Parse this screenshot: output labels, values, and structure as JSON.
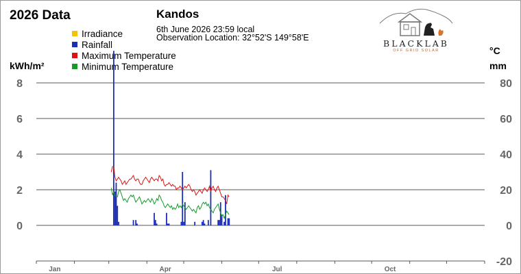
{
  "header": {
    "title": "2026 Data",
    "station": "Kandos",
    "observation_time": "6th June 2026  23:59 local",
    "observation_location": "Observation Location: 32°52'S 149°58'E"
  },
  "logo": {
    "name": "BLACKLAB",
    "tagline": "OFF GRID SOLAR"
  },
  "units": {
    "left": "kWh/m²",
    "right_top": "°C",
    "right_bottom": "mm"
  },
  "colors": {
    "irradiance": "#f2c300",
    "rainfall": "#1c2db5",
    "max_temp": "#e01010",
    "min_temp": "#129a2a",
    "grid": "#555555",
    "axis_text": "#666666"
  },
  "chart_data": {
    "type": "line",
    "title": "2026 Data",
    "left_axis": {
      "label": "kWh/m²",
      "ylim": [
        -2,
        8
      ],
      "ticks": [
        0,
        2,
        4,
        6,
        8
      ]
    },
    "right_axis": {
      "label": "°C / mm",
      "ylim": [
        -20,
        80
      ],
      "ticks": [
        -20,
        0,
        20,
        40,
        60,
        80
      ]
    },
    "x_axis": {
      "range_days": [
        0,
        365
      ],
      "tick_labels": [
        {
          "label": "Jan",
          "day": 15
        },
        {
          "label": "Apr",
          "day": 105
        },
        {
          "label": "Jul",
          "day": 196
        },
        {
          "label": "Oct",
          "day": 288
        }
      ]
    },
    "grid": true,
    "legend": [
      "Irradiance",
      "Rainfall",
      "Maximum Temperature",
      "Minimum Temperature"
    ],
    "series": [
      {
        "name": "Irradiance",
        "axis": "left",
        "values": []
      },
      {
        "name": "Rainfall",
        "axis": "right",
        "style": "bar",
        "x": [
          63,
          64,
          65,
          66,
          67,
          79,
          81,
          82,
          96,
          97,
          98,
          106,
          107,
          108,
          118,
          119,
          120,
          121,
          129,
          135,
          136,
          137,
          140,
          142,
          148,
          149,
          150,
          151,
          153,
          154,
          156,
          157
        ],
        "values": [
          98,
          19,
          24,
          11,
          2,
          3,
          3,
          1,
          7,
          3,
          1,
          7,
          1,
          1,
          2,
          30,
          2,
          13,
          2,
          2,
          3,
          1,
          3,
          31,
          3,
          3,
          13,
          6,
          2,
          17,
          4,
          4
        ]
      },
      {
        "name": "Maximum Temperature",
        "axis": "right",
        "x": [
          61,
          62,
          63,
          64,
          65,
          66,
          67,
          68,
          69,
          70,
          71,
          72,
          73,
          74,
          75,
          76,
          77,
          78,
          79,
          80,
          81,
          82,
          83,
          84,
          85,
          86,
          87,
          88,
          89,
          90,
          91,
          92,
          93,
          94,
          95,
          96,
          97,
          98,
          99,
          100,
          101,
          102,
          103,
          104,
          105,
          106,
          107,
          108,
          109,
          110,
          111,
          112,
          113,
          114,
          115,
          116,
          117,
          118,
          119,
          120,
          121,
          122,
          123,
          124,
          125,
          126,
          127,
          128,
          129,
          130,
          131,
          132,
          133,
          134,
          135,
          136,
          137,
          138,
          139,
          140,
          141,
          142,
          143,
          144,
          145,
          146,
          147,
          148,
          149,
          150,
          151,
          152,
          153,
          154,
          155,
          156,
          157
        ],
        "values": [
          30,
          33,
          33,
          27,
          25,
          26,
          27,
          26,
          25,
          23,
          24,
          25,
          23,
          24,
          25,
          26,
          26,
          27,
          28,
          26,
          25,
          26,
          26,
          24,
          23,
          23,
          25,
          26,
          27,
          26,
          25,
          24,
          26,
          27,
          26,
          25,
          26,
          26,
          25,
          28,
          27,
          25,
          26,
          23,
          22,
          23,
          23,
          24,
          23,
          22,
          23,
          22,
          22,
          20,
          21,
          21,
          22,
          21,
          20,
          21,
          22,
          21,
          22,
          23,
          22,
          20,
          19,
          20,
          19,
          17,
          18,
          19,
          20,
          19,
          18,
          20,
          21,
          20,
          19,
          20,
          22,
          19,
          21,
          22,
          20,
          19,
          21,
          22,
          20,
          18,
          16,
          16,
          15,
          14,
          12,
          17,
          16
        ]
      },
      {
        "name": "Minimum Temperature",
        "axis": "right",
        "x": [
          61,
          62,
          63,
          64,
          65,
          66,
          67,
          68,
          69,
          70,
          71,
          72,
          73,
          74,
          75,
          76,
          77,
          78,
          79,
          80,
          81,
          82,
          83,
          84,
          85,
          86,
          87,
          88,
          89,
          90,
          91,
          92,
          93,
          94,
          95,
          96,
          97,
          98,
          99,
          100,
          101,
          102,
          103,
          104,
          105,
          106,
          107,
          108,
          109,
          110,
          111,
          112,
          113,
          114,
          115,
          116,
          117,
          118,
          119,
          120,
          121,
          122,
          123,
          124,
          125,
          126,
          127,
          128,
          129,
          130,
          131,
          132,
          133,
          134,
          135,
          136,
          137,
          138,
          139,
          140,
          141,
          142,
          143,
          144,
          145,
          146,
          147,
          148,
          149,
          150,
          151,
          152,
          153,
          154,
          155,
          156,
          157
        ],
        "values": [
          21,
          17,
          19,
          17,
          16,
          16,
          19,
          20,
          18,
          16,
          14,
          15,
          14,
          13,
          15,
          16,
          17,
          16,
          17,
          15,
          13,
          14,
          15,
          16,
          14,
          12,
          13,
          14,
          13,
          14,
          15,
          14,
          13,
          15,
          14,
          12,
          13,
          15,
          14,
          17,
          16,
          14,
          13,
          11,
          10,
          11,
          12,
          11,
          10,
          11,
          9,
          10,
          9,
          10,
          12,
          10,
          11,
          10,
          12,
          11,
          10,
          9,
          10,
          11,
          10,
          9,
          8,
          9,
          8,
          7,
          10,
          11,
          9,
          10,
          12,
          13,
          12,
          13,
          11,
          12,
          10,
          9,
          8,
          7,
          9,
          10,
          11,
          12,
          9,
          7,
          5,
          6,
          4,
          6,
          8,
          7,
          6
        ]
      }
    ]
  }
}
